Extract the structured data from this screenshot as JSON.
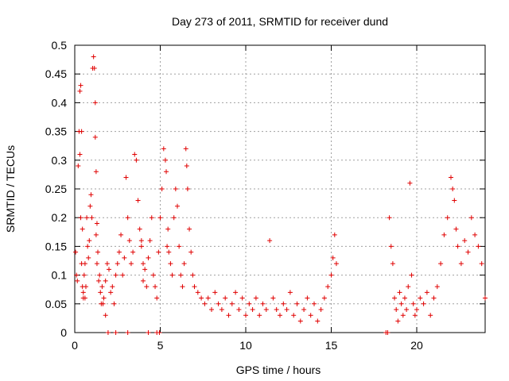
{
  "chart_data": {
    "type": "scatter",
    "title": "Day 273 of 2011, SRMTID for receiver dund",
    "xlabel": "GPS time / hours",
    "ylabel": "SRMTID / TECUs",
    "xlim": [
      0,
      24
    ],
    "ylim": [
      0,
      0.5
    ],
    "x_ticks": [
      0,
      5,
      10,
      15,
      20
    ],
    "x_tick_labels": [
      "0",
      "5",
      "10",
      "15",
      "20"
    ],
    "y_ticks": [
      0,
      0.05,
      0.1,
      0.15,
      0.2,
      0.25,
      0.3,
      0.35,
      0.4,
      0.45,
      0.5
    ],
    "y_tick_labels": [
      "0",
      "0.05",
      "0.1",
      "0.15",
      "0.2",
      "0.25",
      "0.3",
      "0.35",
      "0.4",
      "0.45",
      "0.5"
    ],
    "grid": true,
    "marker": "plus",
    "color": "#e00000",
    "series": [
      {
        "name": "SRMTID",
        "x": [
          0.05,
          0.1,
          0.15,
          0.2,
          0.25,
          0.3,
          0.3,
          0.35,
          0.35,
          0.4,
          0.4,
          0.45,
          0.45,
          0.5,
          0.5,
          0.55,
          0.6,
          0.6,
          0.65,
          0.7,
          0.75,
          0.8,
          0.85,
          0.9,
          0.95,
          1.0,
          1.05,
          1.1,
          1.15,
          1.2,
          1.2,
          1.25,
          1.25,
          1.3,
          1.3,
          1.35,
          1.4,
          1.45,
          1.5,
          1.55,
          1.6,
          1.7,
          1.8,
          1.9,
          2.0,
          2.1,
          2.2,
          2.3,
          2.4,
          2.5,
          2.6,
          2.7,
          2.8,
          2.9,
          3.0,
          3.1,
          3.2,
          3.3,
          3.4,
          3.5,
          3.6,
          3.7,
          3.8,
          3.9,
          3.9,
          4.0,
          4.0,
          4.1,
          4.2,
          4.3,
          4.4,
          4.5,
          4.6,
          4.7,
          4.8,
          4.9,
          5.0,
          5.1,
          5.2,
          5.3,
          5.35,
          5.4,
          5.45,
          5.5,
          5.6,
          5.7,
          5.8,
          5.9,
          6.0,
          6.1,
          6.2,
          6.3,
          6.4,
          6.5,
          6.55,
          6.6,
          6.7,
          6.8,
          6.9,
          7.0,
          7.2,
          7.4,
          7.6,
          7.8,
          8.0,
          8.2,
          8.4,
          8.6,
          8.8,
          9.0,
          9.2,
          9.4,
          9.6,
          9.8,
          10.0,
          10.2,
          10.4,
          10.6,
          10.8,
          11.0,
          11.2,
          11.4,
          11.6,
          11.8,
          12.0,
          12.2,
          12.4,
          12.6,
          12.8,
          13.0,
          13.2,
          13.4,
          13.6,
          13.8,
          14.0,
          14.2,
          14.4,
          14.6,
          14.8,
          15.0,
          15.1,
          15.2,
          15.3,
          1.65,
          1.8,
          1.95,
          2.4,
          3.1,
          4.3,
          4.8,
          4.95,
          18.2,
          18.3,
          18.4,
          18.5,
          18.6,
          18.7,
          18.8,
          18.9,
          19.0,
          19.1,
          19.2,
          19.3,
          19.4,
          19.5,
          19.6,
          19.7,
          19.8,
          19.9,
          20.0,
          20.2,
          20.4,
          20.6,
          20.8,
          21.0,
          21.2,
          21.4,
          21.6,
          21.8,
          22.0,
          22.1,
          22.2,
          22.3,
          22.4,
          22.6,
          22.8,
          23.0,
          23.2,
          23.4,
          23.6,
          23.8,
          24.0
        ],
        "y": [
          0.14,
          0.1,
          0.09,
          0.29,
          0.35,
          0.42,
          0.31,
          0.43,
          0.2,
          0.35,
          0.12,
          0.18,
          0.08,
          0.07,
          0.06,
          0.1,
          0.12,
          0.06,
          0.08,
          0.2,
          0.15,
          0.13,
          0.16,
          0.22,
          0.24,
          0.2,
          0.46,
          0.48,
          0.46,
          0.4,
          0.34,
          0.28,
          0.17,
          0.19,
          0.12,
          0.14,
          0.09,
          0.1,
          0.07,
          0.05,
          0.08,
          0.06,
          0.09,
          0.12,
          0.11,
          0.07,
          0.08,
          0.05,
          0.1,
          0.12,
          0.14,
          0.17,
          0.1,
          0.13,
          0.27,
          0.2,
          0.16,
          0.12,
          0.14,
          0.31,
          0.3,
          0.23,
          0.18,
          0.16,
          0.15,
          0.12,
          0.09,
          0.11,
          0.08,
          0.13,
          0.16,
          0.2,
          0.1,
          0.08,
          0.06,
          0.14,
          0.2,
          0.25,
          0.32,
          0.3,
          0.28,
          0.15,
          0.18,
          0.14,
          0.12,
          0.1,
          0.2,
          0.25,
          0.22,
          0.15,
          0.1,
          0.08,
          0.12,
          0.32,
          0.29,
          0.25,
          0.18,
          0.14,
          0.1,
          0.08,
          0.07,
          0.06,
          0.05,
          0.06,
          0.04,
          0.07,
          0.05,
          0.04,
          0.06,
          0.03,
          0.05,
          0.07,
          0.04,
          0.06,
          0.03,
          0.05,
          0.04,
          0.06,
          0.03,
          0.05,
          0.04,
          0.16,
          0.06,
          0.04,
          0.03,
          0.05,
          0.04,
          0.07,
          0.03,
          0.05,
          0.02,
          0.04,
          0.06,
          0.03,
          0.05,
          0.02,
          0.04,
          0.06,
          0.08,
          0.1,
          0.13,
          0.17,
          0.12,
          0.05,
          0.03,
          0.0,
          0.0,
          0.0,
          0.0,
          0.0,
          0.0,
          0.0,
          0.0,
          0.2,
          0.15,
          0.12,
          0.06,
          0.04,
          0.02,
          0.07,
          0.05,
          0.03,
          0.06,
          0.04,
          0.08,
          0.26,
          0.1,
          0.05,
          0.03,
          0.04,
          0.06,
          0.05,
          0.07,
          0.03,
          0.06,
          0.08,
          0.12,
          0.17,
          0.2,
          0.27,
          0.25,
          0.23,
          0.18,
          0.15,
          0.12,
          0.16,
          0.14,
          0.2,
          0.17,
          0.15,
          0.12,
          0.06
        ]
      }
    ]
  }
}
